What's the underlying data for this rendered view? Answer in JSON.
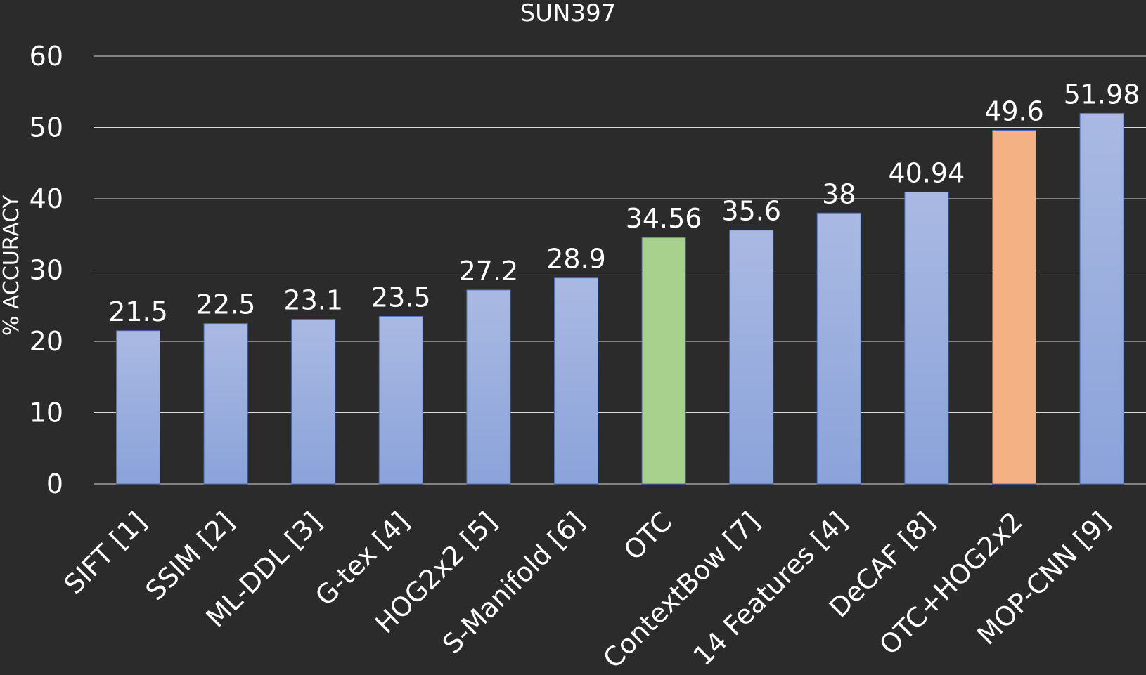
{
  "chart_data": {
    "type": "bar",
    "title": "SUN397",
    "xlabel": "",
    "ylabel": "% ACCURACY",
    "ylim": [
      0,
      60
    ],
    "yticks": [
      0,
      10,
      20,
      30,
      40,
      50,
      60
    ],
    "grid": true,
    "legend": "none",
    "categories": [
      "SIFT [1]",
      "SSIM [2]",
      "ML-DDL [3]",
      "G-tex [4]",
      "HOG2x2 [5]",
      "S-Manifold [6]",
      "OTC",
      "ContextBow [7]",
      "14 Features [4]",
      "DeCAF [8]",
      "OTC+HOG2x2",
      "MOP-CNN [9]"
    ],
    "values": [
      21.5,
      22.5,
      23.1,
      23.5,
      27.2,
      28.9,
      34.56,
      35.6,
      38,
      40.94,
      49.6,
      51.98
    ],
    "value_labels": [
      "21.5",
      "22.5",
      "23.1",
      "23.5",
      "27.2",
      "28.9",
      "34.56",
      "35.6",
      "38",
      "40.94",
      "49.6",
      "51.98"
    ],
    "colors": {
      "default_top": "#a9b9e2",
      "default_bottom": "#8ba3da",
      "highlight_green": "#a9d18e",
      "highlight_orange": "#f4b183",
      "bar_edge": "#4f72c4",
      "grid": "#d9d9d9",
      "text": "#ffffff",
      "background": "#2b2b2b"
    },
    "bar_colors": [
      "default",
      "default",
      "default",
      "default",
      "default",
      "default",
      "green",
      "default",
      "default",
      "default",
      "orange",
      "default"
    ]
  }
}
